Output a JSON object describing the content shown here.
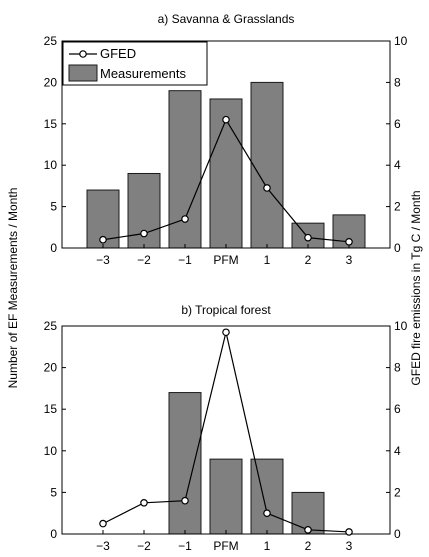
{
  "figure": {
    "left_ylabel": "Number of EF Measurements / Month",
    "right_ylabel": "GFED fire emissions in Tg C / Month"
  },
  "colors": {
    "bar_fill": "#808080",
    "bar_stroke": "#1a1a1a",
    "line": "#000000",
    "marker_fill": "#ffffff"
  },
  "chart_data": [
    {
      "type": "bar",
      "title": "a) Savanna & Grasslands",
      "categories": [
        "−3",
        "−2",
        "−1",
        "PFM",
        "1",
        "2",
        "3"
      ],
      "ylim": [
        0,
        25
      ],
      "yticks": [
        0,
        5,
        10,
        15,
        20,
        25
      ],
      "y2lim": [
        0,
        10
      ],
      "y2ticks": [
        0,
        2,
        4,
        6,
        8,
        10
      ],
      "grid": false,
      "legend": {
        "placement": "top-left",
        "entries": [
          "GFED",
          "Measurements"
        ]
      },
      "series": [
        {
          "name": "Measurements",
          "type": "bar",
          "axis": "left",
          "values": [
            7,
            9,
            19,
            18,
            20,
            3,
            4
          ]
        },
        {
          "name": "GFED",
          "type": "line",
          "axis": "right",
          "values": [
            0.4,
            0.7,
            1.4,
            6.2,
            2.9,
            0.5,
            0.3
          ]
        }
      ]
    },
    {
      "type": "bar",
      "title": "b) Tropical forest",
      "categories": [
        "−3",
        "−2",
        "−1",
        "PFM",
        "1",
        "2",
        "3"
      ],
      "ylim": [
        0,
        25
      ],
      "yticks": [
        0,
        5,
        10,
        15,
        20,
        25
      ],
      "y2lim": [
        0,
        10
      ],
      "y2ticks": [
        0,
        2,
        4,
        6,
        8,
        10
      ],
      "grid": false,
      "series": [
        {
          "name": "Measurements",
          "type": "bar",
          "axis": "left",
          "values": [
            0,
            0,
            17,
            9,
            9,
            5,
            0
          ]
        },
        {
          "name": "GFED",
          "type": "line",
          "axis": "right",
          "values": [
            0.5,
            1.5,
            1.6,
            9.7,
            1.0,
            0.2,
            0.1
          ]
        }
      ]
    }
  ]
}
